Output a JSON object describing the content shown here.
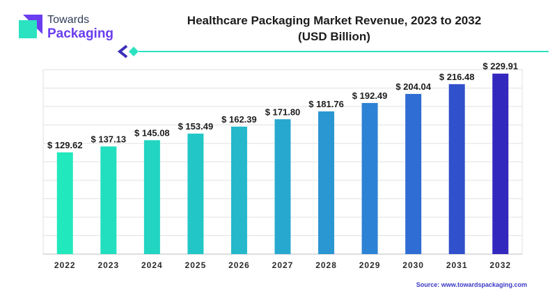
{
  "brand": {
    "line1": "Towards",
    "line2": "Packaging"
  },
  "chart_data": {
    "type": "bar",
    "title": "Healthcare Packaging Market Revenue, 2023 to 2032",
    "subtitle": "(USD Billion)",
    "categories": [
      "2022",
      "2023",
      "2024",
      "2025",
      "2026",
      "2027",
      "2028",
      "2029",
      "2030",
      "2031",
      "2032"
    ],
    "values": [
      129.62,
      137.13,
      145.08,
      153.49,
      162.39,
      171.8,
      181.76,
      192.49,
      204.04,
      216.48,
      229.91
    ],
    "value_labels": [
      "$ 129.62",
      "$ 137.13",
      "$ 145.08",
      "$ 153.49",
      "$ 162.39",
      "$ 171.80",
      "$ 181.76",
      "$ 192.49",
      "$ 204.04",
      "$ 216.48",
      "$ 229.91"
    ],
    "ylim": [
      0,
      235
    ],
    "grid": true,
    "colors": [
      "#22e8bd",
      "#21dfbf",
      "#22d4c2",
      "#23c6c7",
      "#25b8cb",
      "#27a8cf",
      "#2a96d2",
      "#2c82d4",
      "#2f6cd3",
      "#3150cc",
      "#3328be"
    ]
  },
  "source": "Source: www.towardspackaging.com",
  "colors": {
    "accent_teal": "#2be3c0",
    "accent_purple": "#6a3df0",
    "grid": "#e2e2e2"
  }
}
